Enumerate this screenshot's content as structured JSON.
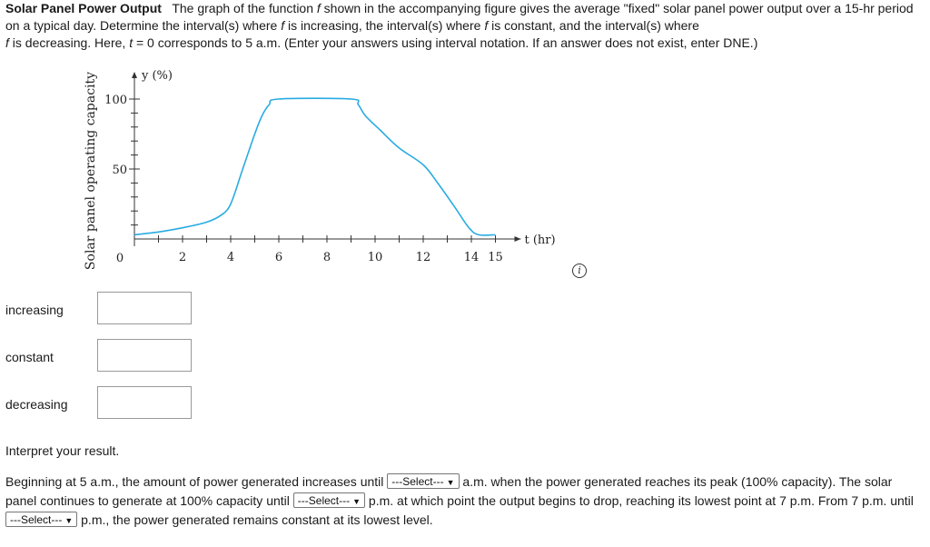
{
  "problem": {
    "title": "Solar Panel Power Output",
    "part1": "The graph of the function ",
    "f1": "f",
    "part2": " shown in the accompanying figure gives the average \"fixed\" solar panel power output over a 15-hr period on a typical day. Determine the interval(s) where ",
    "f2": "f",
    "part3": " is increasing, the interval(s) where ",
    "f3": "f",
    "part4": " is constant, and the interval(s) where ",
    "f4": "f",
    "part5": " is decreasing. Here, ",
    "t": "t",
    "part6": " = 0 corresponds to 5 a.m. (Enter your answers using interval notation. If an answer does not exist, enter DNE.)"
  },
  "chart_data": {
    "type": "line",
    "ylabel": "Solar panel operating capacity",
    "y_axis_label": "y (%)",
    "x_axis_label": "t (hr)",
    "x_tick_labels": [
      "2",
      "4",
      "6",
      "8",
      "10",
      "12",
      "14",
      "15"
    ],
    "y_tick_labels": [
      "50",
      "100"
    ],
    "origin_label": "0",
    "xlim": [
      0,
      15
    ],
    "ylim": [
      0,
      100
    ],
    "line_color": "#29abe2",
    "points": [
      [
        0,
        3
      ],
      [
        1,
        5
      ],
      [
        2,
        8
      ],
      [
        3,
        12
      ],
      [
        3.6,
        17
      ],
      [
        4,
        25
      ],
      [
        4.5,
        50
      ],
      [
        5,
        75
      ],
      [
        5.3,
        88
      ],
      [
        5.6,
        96
      ],
      [
        6,
        100
      ],
      [
        9,
        100
      ],
      [
        9.3,
        96
      ],
      [
        9.6,
        88
      ],
      [
        10.2,
        78
      ],
      [
        11,
        65
      ],
      [
        12,
        53
      ],
      [
        12.6,
        40
      ],
      [
        13.3,
        23
      ],
      [
        13.9,
        8
      ],
      [
        14.3,
        3
      ],
      [
        15,
        3
      ]
    ]
  },
  "answers": {
    "increasing_label": "increasing",
    "constant_label": "constant",
    "decreasing_label": "decreasing",
    "increasing_value": "",
    "constant_value": "",
    "decreasing_value": ""
  },
  "interpret": {
    "heading": "Interpret your result.",
    "s1": "Beginning at 5 a.m., the amount of power generated increases until ",
    "select1": "---Select---",
    "s2": " a.m. when the power generated reaches its peak (100% capacity). The solar panel continues to generate at 100% capacity until ",
    "select2": "---Select---",
    "s3": " p.m. at which point the output begins to drop, reaching its lowest point at 7 p.m. From 7 p.m. until ",
    "select3": "---Select---",
    "s4": " p.m., the power generated remains constant at its lowest level."
  }
}
